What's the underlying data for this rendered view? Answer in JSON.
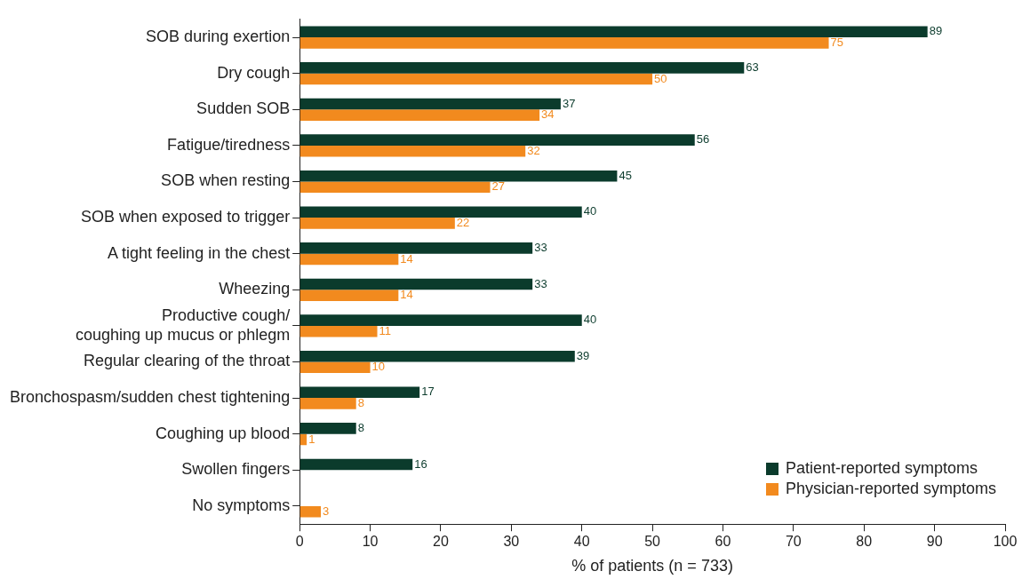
{
  "chart_data": {
    "type": "bar",
    "orientation": "horizontal",
    "xlabel": "% of patients (n = 733)",
    "categories": [
      "SOB during exertion",
      "Dry cough",
      "Sudden SOB",
      "Fatigue/tiredness",
      "SOB when resting",
      "SOB when exposed to trigger",
      "A tight feeling in the chest",
      "Wheezing",
      "Productive cough/\ncoughing up mucus or phlegm",
      "Regular clearing of the throat",
      "Bronchospasm/sudden chest tightening",
      "Coughing up blood",
      "Swollen fingers",
      "No symptoms"
    ],
    "series": [
      {
        "name": "Patient-reported symptoms",
        "color": "#0b3b2c",
        "values": [
          89,
          63,
          37,
          56,
          45,
          40,
          33,
          33,
          40,
          39,
          17,
          8,
          16,
          null
        ]
      },
      {
        "name": "Physician-reported symptoms",
        "color": "#f28a1e",
        "values": [
          75,
          50,
          34,
          32,
          27,
          22,
          14,
          14,
          11,
          10,
          8,
          1,
          null,
          3
        ]
      }
    ],
    "xlim": [
      0,
      100
    ],
    "xticks": [
      0,
      10,
      20,
      30,
      40,
      50,
      60,
      70,
      80,
      90,
      100
    ],
    "grid": false,
    "legend": "bottom right",
    "data_labels": true
  }
}
